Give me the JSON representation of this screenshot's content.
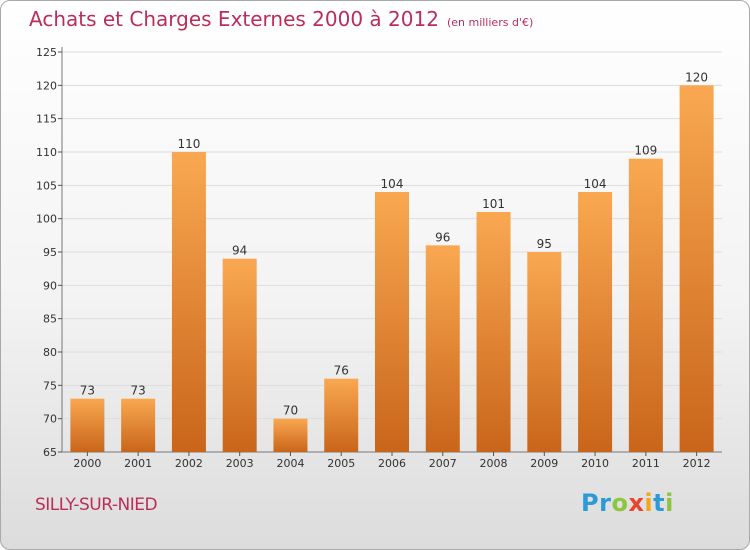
{
  "header": {
    "title": "Achats et Charges Externes 2000 à 2012",
    "unit": "(en milliers d'€)"
  },
  "footer": {
    "commune": "SILLY-SUR-NIED",
    "logo": [
      {
        "char": "P",
        "color": "#2d9ad6"
      },
      {
        "char": "r",
        "color": "#2d9ad6"
      },
      {
        "char": "o",
        "color": "#8cc63e"
      },
      {
        "char": "x",
        "color": "#e8442a"
      },
      {
        "char": "i",
        "color": "#f2a61b"
      },
      {
        "char": "t",
        "color": "#2d9ad6"
      },
      {
        "char": "i",
        "color": "#8cc63e"
      }
    ]
  },
  "colors": {
    "title": "#ba2f5a",
    "bar_light": "#f9a851",
    "bar_dark": "#c9651a"
  },
  "chart_data": {
    "type": "bar",
    "categories": [
      "2000",
      "2001",
      "2002",
      "2003",
      "2004",
      "2005",
      "2006",
      "2007",
      "2008",
      "2009",
      "2010",
      "2011",
      "2012"
    ],
    "values": [
      73,
      73,
      110,
      94,
      70,
      76,
      104,
      96,
      101,
      95,
      104,
      109,
      120
    ],
    "ylim": [
      65,
      125
    ],
    "yticks": [
      65,
      70,
      75,
      80,
      85,
      90,
      95,
      100,
      105,
      110,
      115,
      120,
      125
    ],
    "grid": true,
    "title": "Achats et Charges Externes 2000 à 2012",
    "xlabel": "",
    "ylabel": ""
  }
}
